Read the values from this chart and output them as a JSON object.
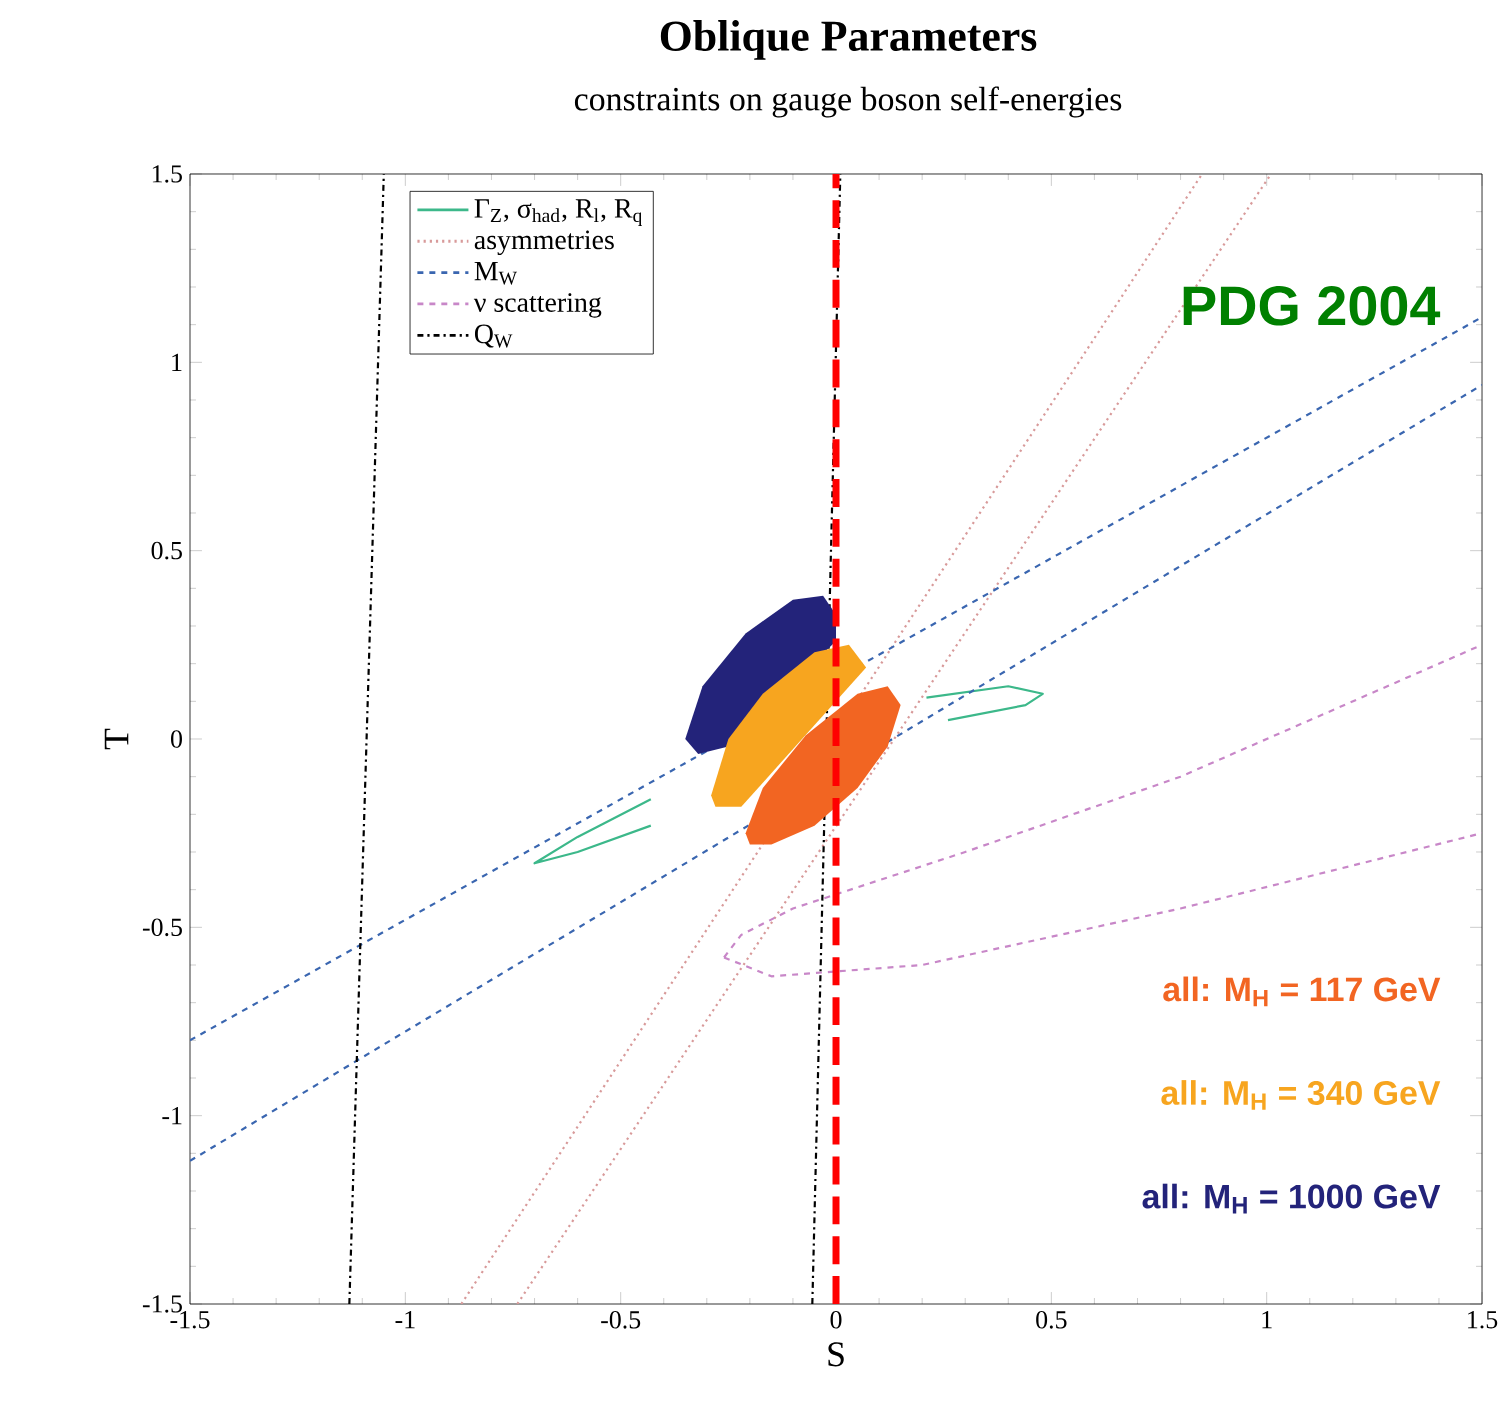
{
  "chart_data": {
    "type": "line",
    "title": "Oblique Parameters",
    "subtitle": "constraints on gauge boson self-energies",
    "xlabel": "S",
    "ylabel": "T",
    "xlim": [
      -1.5,
      1.5
    ],
    "ylim": [
      -1.5,
      1.5
    ],
    "xticks": [
      -1.5,
      -1,
      -0.5,
      0,
      0.5,
      1,
      1.5
    ],
    "yticks": [
      -1.5,
      -1,
      -0.5,
      0,
      0.5,
      1,
      1.5
    ],
    "legend": "top left",
    "grid": false,
    "annotations": [
      "PDG 2004"
    ],
    "ref_lines": [
      {
        "axis": "x",
        "value": 0,
        "color": "#ff0000",
        "line_style": "dashed"
      }
    ],
    "series": [
      {
        "name": "Γ$_{Z}$, σ$_{had}$, R$_{l}$, R$_{q}$",
        "color": "#3cb88a",
        "line_style": "solid",
        "x": [
          0.21,
          0.4,
          0.48,
          0.44,
          0.26,
          -0.01,
          -0.22,
          -0.43,
          -0.6,
          -0.7,
          -0.6,
          -0.43,
          -0.22,
          -0.01,
          0.21
        ],
        "values": [
          0.11,
          0.14,
          0.12,
          0.09,
          0.05,
          null,
          null,
          -0.23,
          -0.3,
          -0.33,
          -0.26,
          -0.16,
          null,
          null,
          0.11
        ]
      },
      {
        "name": "asymmetries",
        "color": "#d89a9a",
        "line_style": "dotted",
        "x": [
          -0.87,
          0.85
        ],
        "values": [
          -1.5,
          1.5
        ]
      },
      {
        "color": "#d89a9a",
        "line_style": "dotted",
        "x": [
          -0.74,
          1.01
        ],
        "values": [
          -1.5,
          1.5
        ]
      },
      {
        "name": "M$_{W}$",
        "color": "#3a66b0",
        "line_style": "dashed",
        "x": [
          -1.5,
          1.5
        ],
        "values": [
          -0.8,
          1.12
        ]
      },
      {
        "color": "#3a66b0",
        "line_style": "dashed",
        "x": [
          -1.5,
          1.5
        ],
        "values": [
          -1.12,
          0.94
        ]
      },
      {
        "name": "ν scattering",
        "color": "#c887c8",
        "line_style": "dashed",
        "x": [
          -0.26,
          -0.22,
          -0.1,
          0.3,
          0.8,
          1.5
        ],
        "values": [
          -0.58,
          -0.52,
          -0.45,
          -0.3,
          -0.1,
          0.25
        ]
      },
      {
        "color": "#c887c8",
        "line_style": "dashed",
        "x": [
          -0.26,
          -0.15,
          0.2,
          0.8,
          1.5
        ],
        "values": [
          -0.58,
          -0.63,
          -0.6,
          -0.45,
          -0.25
        ]
      },
      {
        "name": "Q$_{W}$",
        "color": "#000000",
        "line_style": "dashdotted",
        "x": [
          -1.13,
          -1.05
        ],
        "values": [
          -1.5,
          1.5
        ]
      },
      {
        "color": "#000000",
        "line_style": "dashdotted",
        "x": [
          -0.055,
          0.01
        ],
        "values": [
          -1.5,
          1.5
        ]
      },
      {
        "name": "all: M$_{H}$ = 1000 GeV",
        "type": "area",
        "color": "#23237a",
        "x": [
          -0.35,
          -0.31,
          -0.21,
          -0.1,
          -0.03,
          0.0,
          0.0,
          -0.25,
          -0.32
        ],
        "values": [
          0.0,
          0.14,
          0.28,
          0.37,
          0.38,
          0.33,
          0.26,
          -0.02,
          -0.04
        ]
      },
      {
        "name": "all: M$_{H}$ = 340 GeV",
        "type": "area",
        "color": "#f7a51f",
        "x": [
          -0.29,
          -0.25,
          -0.17,
          -0.05,
          0.03,
          0.07,
          -0.22,
          -0.28
        ],
        "values": [
          -0.15,
          0.0,
          0.12,
          0.23,
          0.25,
          0.19,
          -0.18,
          -0.18
        ]
      },
      {
        "name": "all: M$_{H}$ = 117 GeV",
        "type": "area",
        "color": "#f26522",
        "x": [
          -0.21,
          -0.17,
          -0.07,
          0.05,
          0.12,
          0.15,
          0.12,
          0.05,
          -0.05,
          -0.15,
          -0.2
        ],
        "values": [
          -0.25,
          -0.13,
          0.01,
          0.12,
          0.14,
          0.09,
          -0.02,
          -0.13,
          -0.23,
          -0.28,
          -0.28
        ]
      }
    ]
  }
}
